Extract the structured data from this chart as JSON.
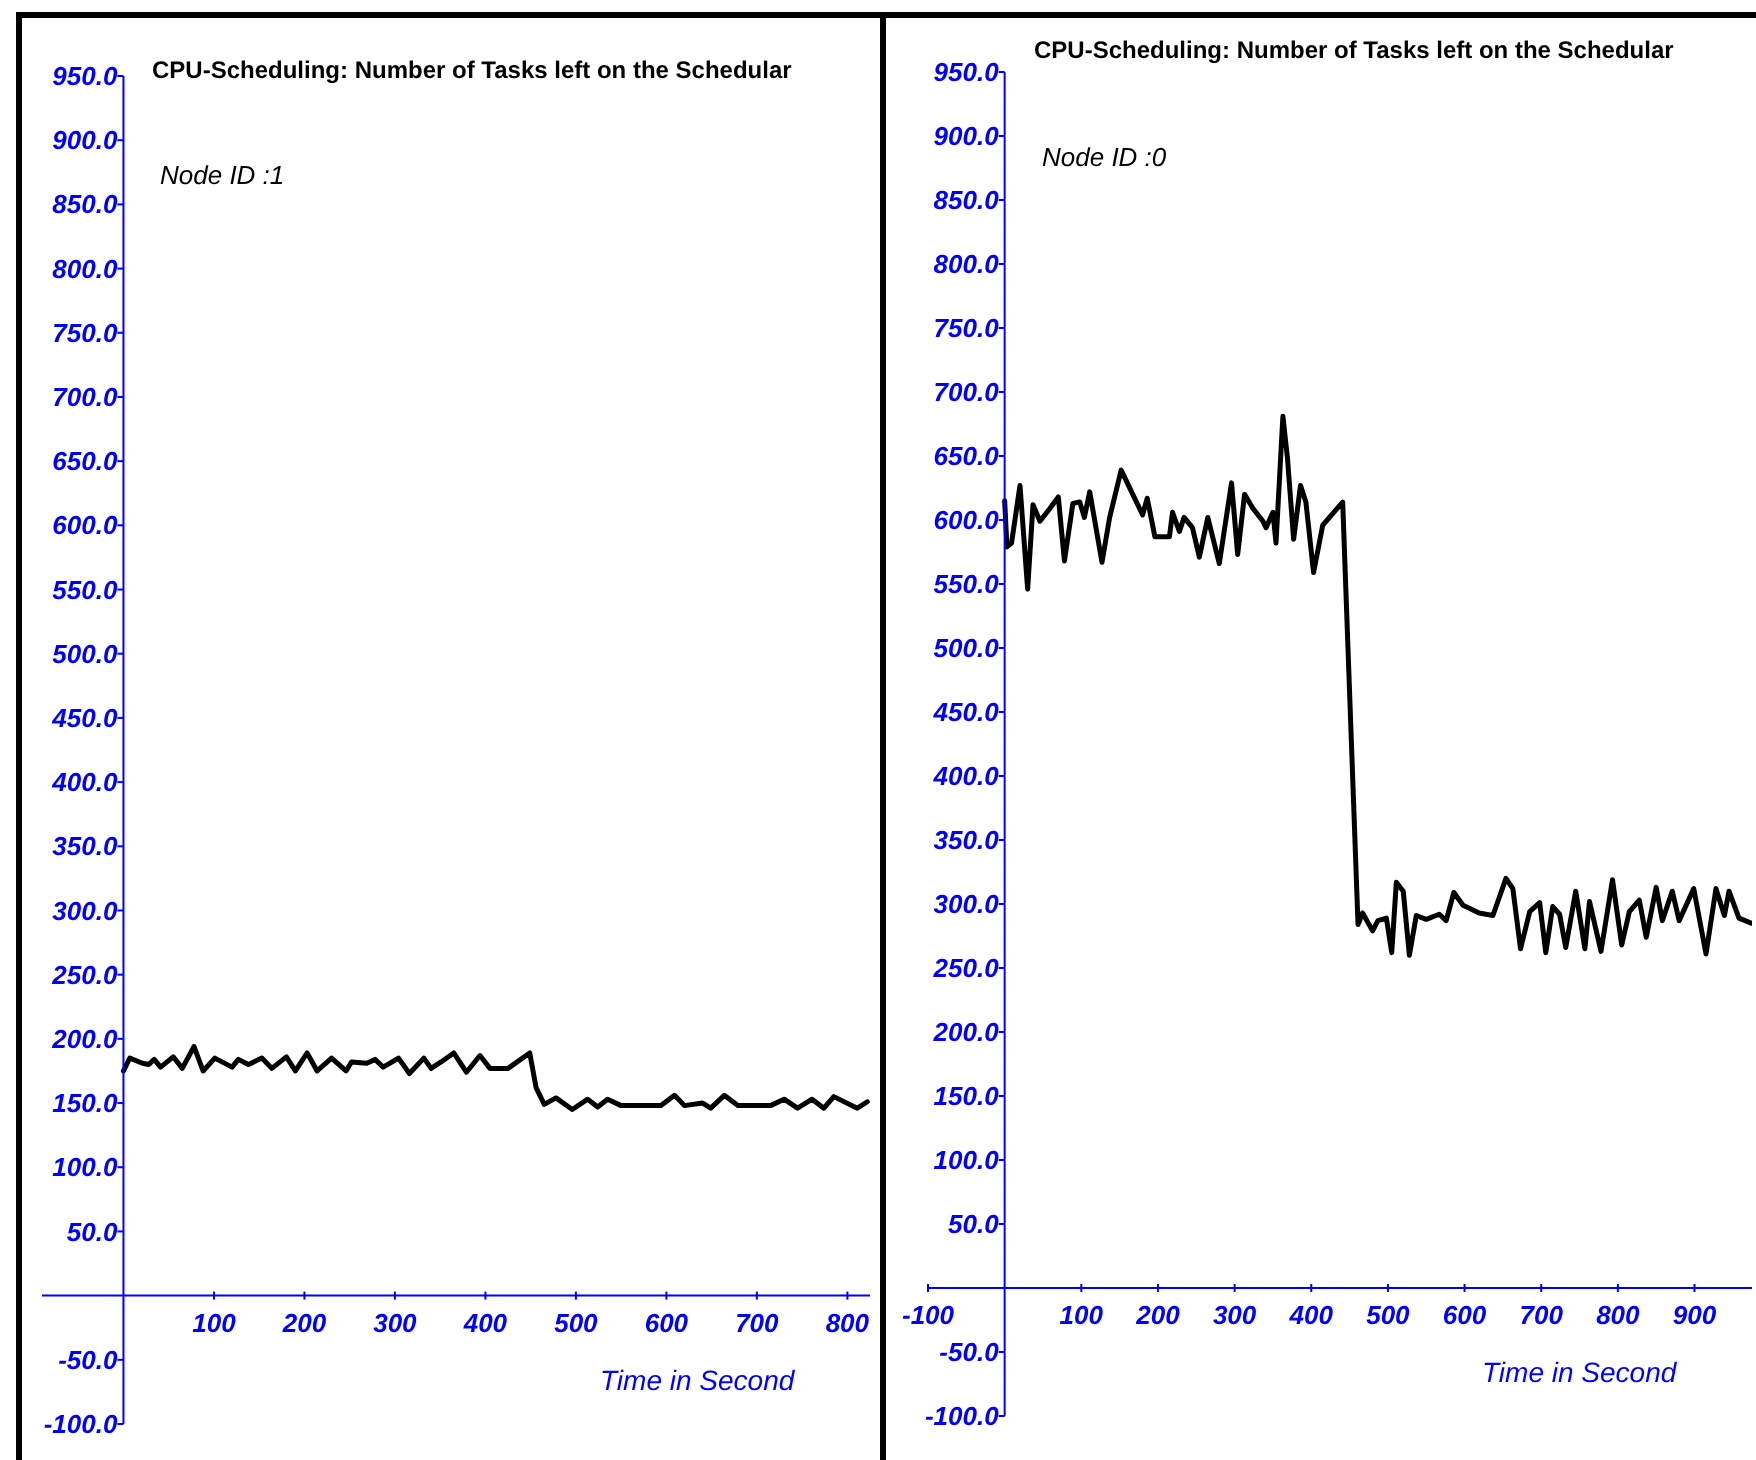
{
  "chart_data": [
    {
      "type": "line",
      "title": "CPU-Scheduling: Number of Tasks left on the Schedular",
      "xlabel": "Time in Second",
      "annotations": [
        "Node ID :1"
      ],
      "x": [
        0,
        7,
        21,
        28,
        34,
        41,
        55,
        65,
        78,
        88,
        101,
        120,
        127,
        138,
        153,
        164,
        180,
        190,
        203,
        214,
        230,
        246,
        252,
        269,
        278,
        287,
        304,
        316,
        332,
        340,
        351,
        365,
        379,
        394,
        405,
        425,
        449,
        456,
        465,
        478,
        496,
        513,
        524,
        535,
        550,
        594,
        609,
        620,
        640,
        649,
        664,
        679,
        715,
        730,
        745,
        761,
        774,
        785,
        811,
        822
      ],
      "series": [
        {
          "color": "#000000",
          "values": [
            175,
            185,
            181,
            180,
            184,
            178,
            186,
            177,
            194,
            175,
            185,
            178,
            184,
            180,
            185,
            177,
            186,
            175,
            189,
            175,
            185,
            175,
            182,
            181,
            184,
            178,
            185,
            173,
            185,
            177,
            182,
            189,
            174,
            187,
            177,
            177,
            189,
            162,
            149,
            154,
            145,
            153,
            147,
            153,
            148,
            148,
            156,
            148,
            150,
            146,
            156,
            148,
            148,
            153,
            146,
            153,
            146,
            155,
            146,
            151
          ]
        }
      ],
      "xlim": [
        -90,
        825
      ],
      "xticks": [
        100,
        200,
        300,
        400,
        500,
        600,
        700,
        800
      ],
      "ylim": [
        -100,
        950
      ],
      "yticks": [
        {
          "value": 950,
          "label": "950.0"
        },
        {
          "value": 900,
          "label": "900.0"
        },
        {
          "value": 850,
          "label": "850.0"
        },
        {
          "value": 800,
          "label": "800.0"
        },
        {
          "value": 750,
          "label": "750.0"
        },
        {
          "value": 700,
          "label": "700.0"
        },
        {
          "value": 650,
          "label": "650.0"
        },
        {
          "value": 600,
          "label": "600.0"
        },
        {
          "value": 550,
          "label": "550.0"
        },
        {
          "value": 500,
          "label": "500.0"
        },
        {
          "value": 450,
          "label": "450.0"
        },
        {
          "value": 400,
          "label": "400.0"
        },
        {
          "value": 350,
          "label": "350.0"
        },
        {
          "value": 300,
          "label": "300.0"
        },
        {
          "value": 250,
          "label": "250.0"
        },
        {
          "value": 200,
          "label": "200.0"
        },
        {
          "value": 150,
          "label": "150.0"
        },
        {
          "value": 100,
          "label": "100.0"
        },
        {
          "value": 50,
          "label": "50.0"
        },
        {
          "value": -50,
          "label": "-50.0"
        },
        {
          "value": -100,
          "label": "-100.0"
        }
      ]
    },
    {
      "type": "line",
      "title": "CPU-Scheduling: Number of Tasks left on the Schedular",
      "xlabel": "Time in Second",
      "annotations": [
        "Node ID :0"
      ],
      "x": [
        0,
        3,
        9,
        20,
        30,
        37,
        46,
        59,
        70,
        78,
        89,
        98,
        104,
        111,
        127,
        137,
        152,
        180,
        186,
        196,
        215,
        219,
        228,
        234,
        245,
        254,
        265,
        280,
        296,
        304,
        313,
        324,
        337,
        341,
        350,
        354,
        363,
        369,
        377,
        386,
        393,
        403,
        415,
        441,
        461,
        467,
        480,
        487,
        498,
        505,
        511,
        520,
        528,
        537,
        550,
        567,
        576,
        586,
        598,
        619,
        637,
        654,
        663,
        673,
        685,
        698,
        706,
        715,
        724,
        732,
        745,
        757,
        763,
        778,
        793,
        805,
        815,
        828,
        837,
        850,
        858,
        871,
        880,
        899,
        915,
        928,
        939,
        945,
        958,
        974
      ],
      "series": [
        {
          "color": "#000000",
          "values": [
            615,
            579,
            582,
            627,
            546,
            612,
            599,
            609,
            618,
            568,
            613,
            614,
            602,
            622,
            567,
            602,
            639,
            604,
            617,
            587,
            587,
            606,
            591,
            602,
            594,
            571,
            602,
            566,
            629,
            573,
            620,
            609,
            599,
            594,
            606,
            582,
            681,
            648,
            585,
            627,
            614,
            559,
            596,
            614,
            284,
            293,
            279,
            287,
            289,
            262,
            317,
            310,
            260,
            291,
            288,
            292,
            287,
            309,
            299,
            293,
            291,
            320,
            312,
            265,
            294,
            301,
            262,
            298,
            292,
            266,
            310,
            265,
            302,
            263,
            319,
            268,
            294,
            303,
            274,
            313,
            287,
            310,
            287,
            312,
            261,
            312,
            291,
            310,
            289,
            285
          ]
        }
      ],
      "xlim": [
        -100,
        975
      ],
      "xticks": [
        -100,
        100,
        200,
        300,
        400,
        500,
        600,
        700,
        800,
        900
      ],
      "ylim": [
        -100,
        950
      ],
      "yticks": [
        {
          "value": 950,
          "label": "950.0"
        },
        {
          "value": 900,
          "label": "900.0"
        },
        {
          "value": 850,
          "label": "850.0"
        },
        {
          "value": 800,
          "label": "800.0"
        },
        {
          "value": 750,
          "label": "750.0"
        },
        {
          "value": 700,
          "label": "700.0"
        },
        {
          "value": 650,
          "label": "650.0"
        },
        {
          "value": 600,
          "label": "600.0"
        },
        {
          "value": 550,
          "label": "550.0"
        },
        {
          "value": 500,
          "label": "500.0"
        },
        {
          "value": 450,
          "label": "450.0"
        },
        {
          "value": 400,
          "label": "400.0"
        },
        {
          "value": 350,
          "label": "350.0"
        },
        {
          "value": 300,
          "label": "300.0"
        },
        {
          "value": 250,
          "label": "250.0"
        },
        {
          "value": 200,
          "label": "200.0"
        },
        {
          "value": 150,
          "label": "150.0"
        },
        {
          "value": 100,
          "label": "100.0"
        },
        {
          "value": 50,
          "label": "50.0"
        },
        {
          "value": -50,
          "label": "-50.0"
        },
        {
          "value": -100,
          "label": "-100.0"
        }
      ]
    }
  ]
}
